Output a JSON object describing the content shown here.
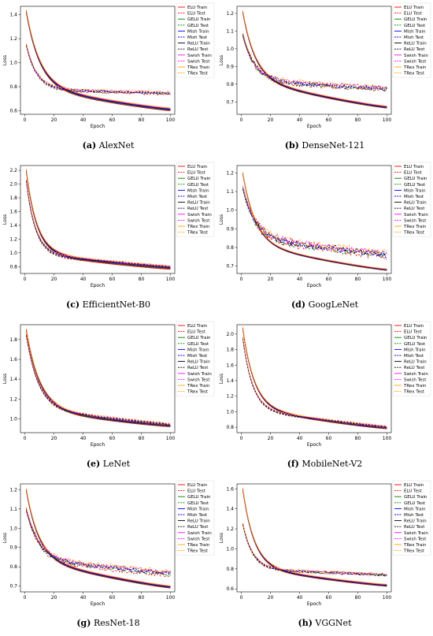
{
  "legend_labels": [
    "ELU Train",
    "ELU Test",
    "GELU Train",
    "GELU Test",
    "Mish Train",
    "Mish Test",
    "ReLU Train",
    "ReLU Test",
    "Swish Train",
    "Swish Test",
    "TRex Train",
    "TRex Test"
  ],
  "legend_colors": [
    "#ff0000",
    "#ff0000",
    "#008000",
    "#008000",
    "#0000ff",
    "#0000ff",
    "#000000",
    "#000000",
    "#ff00ff",
    "#ff00ff",
    "#ffa500",
    "#ffa500"
  ],
  "legend_dashed": [
    false,
    true,
    false,
    true,
    false,
    true,
    false,
    true,
    false,
    true,
    false,
    true
  ],
  "chart_data": [
    {
      "type": "line",
      "letter": "(a)",
      "name": "AlexNet",
      "xlabel": "Epoch",
      "ylabel": "Loss",
      "xlim": [
        -3,
        103
      ],
      "ylim": [
        0.57,
        1.47
      ],
      "xticks": [
        0,
        20,
        40,
        60,
        80,
        100
      ],
      "xtick_labels": [
        "0",
        "20",
        "40",
        "60",
        "80",
        "100"
      ],
      "yticks": [
        0.6,
        0.8,
        1.0,
        1.2,
        1.4
      ],
      "ytick_labels": [
        "0.6",
        "0.8",
        "1.0",
        "1.2",
        "1.4"
      ],
      "train": {
        "start": 1.43,
        "mid": 0.8,
        "end": 0.61,
        "k": 0.11,
        "spread": 0.012
      },
      "test": {
        "start": 1.15,
        "mid": 0.78,
        "end": 0.745,
        "k": 0.14,
        "noise": 0.008,
        "spread": 0.01
      }
    },
    {
      "type": "line",
      "letter": "(b)",
      "name": "DenseNet-121",
      "xlabel": "Epoch",
      "ylabel": "Loss",
      "xlim": [
        -3,
        103
      ],
      "ylim": [
        0.63,
        1.24
      ],
      "xticks": [
        0,
        20,
        40,
        60,
        80,
        100
      ],
      "xtick_labels": [
        "0",
        "20",
        "40",
        "60",
        "80",
        "100"
      ],
      "yticks": [
        0.7,
        0.8,
        0.9,
        1.0,
        1.1,
        1.2
      ],
      "ytick_labels": [
        "0.7",
        "0.8",
        "0.9",
        "1.0",
        "1.1",
        "1.2"
      ],
      "train": {
        "start": 1.21,
        "mid": 0.83,
        "end": 0.67,
        "k": 0.12,
        "spread": 0.006
      },
      "test": {
        "start": 1.08,
        "mid": 0.82,
        "end": 0.775,
        "k": 0.12,
        "noise": 0.01,
        "spread": 0.01
      }
    },
    {
      "type": "line",
      "letter": "(c)",
      "name": "EfficientNet-B0",
      "xlabel": "Epoch",
      "ylabel": "Loss",
      "xlim": [
        -3,
        103
      ],
      "ylim": [
        0.7,
        2.27
      ],
      "xticks": [
        0,
        20,
        40,
        60,
        80,
        100
      ],
      "xtick_labels": [
        "0",
        "20",
        "40",
        "60",
        "80",
        "100"
      ],
      "yticks": [
        0.8,
        1.0,
        1.2,
        1.4,
        1.6,
        1.8,
        2.0,
        2.2
      ],
      "ytick_labels": [
        "0.8",
        "1.0",
        "1.2",
        "1.4",
        "1.6",
        "1.8",
        "2.0",
        "2.2"
      ],
      "train": {
        "start": 2.2,
        "mid": 1.0,
        "end": 0.78,
        "k": 0.14,
        "spread": 0.02
      },
      "test": {
        "start": 2.05,
        "mid": 0.98,
        "end": 0.79,
        "k": 0.16,
        "noise": 0.006,
        "spread": 0.02
      }
    },
    {
      "type": "line",
      "letter": "(d)",
      "name": "GoogLeNet",
      "xlabel": "Epoch",
      "ylabel": "Loss",
      "xlim": [
        -3,
        103
      ],
      "ylim": [
        0.66,
        1.24
      ],
      "xticks": [
        0,
        20,
        40,
        60,
        80,
        100
      ],
      "xtick_labels": [
        "0",
        "20",
        "40",
        "60",
        "80",
        "100"
      ],
      "yticks": [
        0.7,
        0.8,
        0.9,
        1.0,
        1.1,
        1.2
      ],
      "ytick_labels": [
        "0.7",
        "0.8",
        "0.9",
        "1.0",
        "1.1",
        "1.2"
      ],
      "train": {
        "start": 1.2,
        "mid": 0.82,
        "end": 0.68,
        "k": 0.12,
        "spread": 0.004
      },
      "test": {
        "start": 1.12,
        "mid": 0.85,
        "end": 0.76,
        "k": 0.12,
        "noise": 0.016,
        "spread": 0.012
      }
    },
    {
      "type": "line",
      "letter": "(e)",
      "name": "LeNet",
      "xlabel": "Epoch",
      "ylabel": "Loss",
      "xlim": [
        -3,
        103
      ],
      "ylim": [
        0.86,
        1.95
      ],
      "xticks": [
        0,
        20,
        40,
        60,
        80,
        100
      ],
      "xtick_labels": [
        "0",
        "20",
        "40",
        "60",
        "80",
        "100"
      ],
      "yticks": [
        1.0,
        1.2,
        1.4,
        1.6,
        1.8
      ],
      "ytick_labels": [
        "1.0",
        "1.2",
        "1.4",
        "1.6",
        "1.8"
      ],
      "train": {
        "start": 1.9,
        "mid": 1.1,
        "end": 0.93,
        "k": 0.11,
        "spread": 0.012
      },
      "test": {
        "start": 1.85,
        "mid": 1.1,
        "end": 0.94,
        "k": 0.12,
        "noise": 0.004,
        "spread": 0.012
      }
    },
    {
      "type": "line",
      "letter": "(f)",
      "name": "MobileNet-V2",
      "xlabel": "Epoch",
      "ylabel": "Loss",
      "xlim": [
        -3,
        103
      ],
      "ylim": [
        0.73,
        2.12
      ],
      "xticks": [
        0,
        20,
        40,
        60,
        80,
        100
      ],
      "xtick_labels": [
        "0",
        "20",
        "40",
        "60",
        "80",
        "100"
      ],
      "yticks": [
        0.8,
        1.0,
        1.2,
        1.4,
        1.6,
        1.8,
        2.0
      ],
      "ytick_labels": [
        "0.8",
        "1.0",
        "1.2",
        "1.4",
        "1.6",
        "1.8",
        "2.0"
      ],
      "train": {
        "start": 2.08,
        "mid": 1.05,
        "end": 0.79,
        "k": 0.13,
        "spread": 0.012
      },
      "test": {
        "start": 1.95,
        "mid": 1.02,
        "end": 0.8,
        "k": 0.15,
        "noise": 0.004,
        "spread": 0.012
      }
    },
    {
      "type": "line",
      "letter": "(g)",
      "name": "ResNet-18",
      "xlabel": "Epoch",
      "ylabel": "Loss",
      "xlim": [
        -3,
        103
      ],
      "ylim": [
        0.67,
        1.23
      ],
      "xticks": [
        0,
        20,
        40,
        60,
        80,
        100
      ],
      "xtick_labels": [
        "0",
        "20",
        "40",
        "60",
        "80",
        "100"
      ],
      "yticks": [
        0.7,
        0.8,
        0.9,
        1.0,
        1.1,
        1.2
      ],
      "ytick_labels": [
        "0.7",
        "0.8",
        "0.9",
        "1.0",
        "1.1",
        "1.2"
      ],
      "train": {
        "start": 1.2,
        "mid": 0.84,
        "end": 0.695,
        "k": 0.12,
        "spread": 0.006
      },
      "test": {
        "start": 1.1,
        "mid": 0.84,
        "end": 0.765,
        "k": 0.12,
        "noise": 0.01,
        "spread": 0.01
      }
    },
    {
      "type": "line",
      "letter": "(h)",
      "name": "VGGNet",
      "xlabel": "Epoch",
      "ylabel": "Loss",
      "xlim": [
        -3,
        103
      ],
      "ylim": [
        0.57,
        1.65
      ],
      "xticks": [
        0,
        20,
        40,
        60,
        80,
        100
      ],
      "xtick_labels": [
        "0",
        "20",
        "40",
        "60",
        "80",
        "100"
      ],
      "yticks": [
        0.6,
        0.8,
        1.0,
        1.2,
        1.4,
        1.6
      ],
      "ytick_labels": [
        "0.6",
        "0.8",
        "1.0",
        "1.2",
        "1.4",
        "1.6"
      ],
      "train": {
        "start": 1.6,
        "mid": 0.82,
        "end": 0.635,
        "k": 0.13,
        "spread": 0.01
      },
      "test": {
        "start": 1.25,
        "mid": 0.8,
        "end": 0.74,
        "k": 0.15,
        "noise": 0.008,
        "spread": 0.01
      }
    }
  ]
}
